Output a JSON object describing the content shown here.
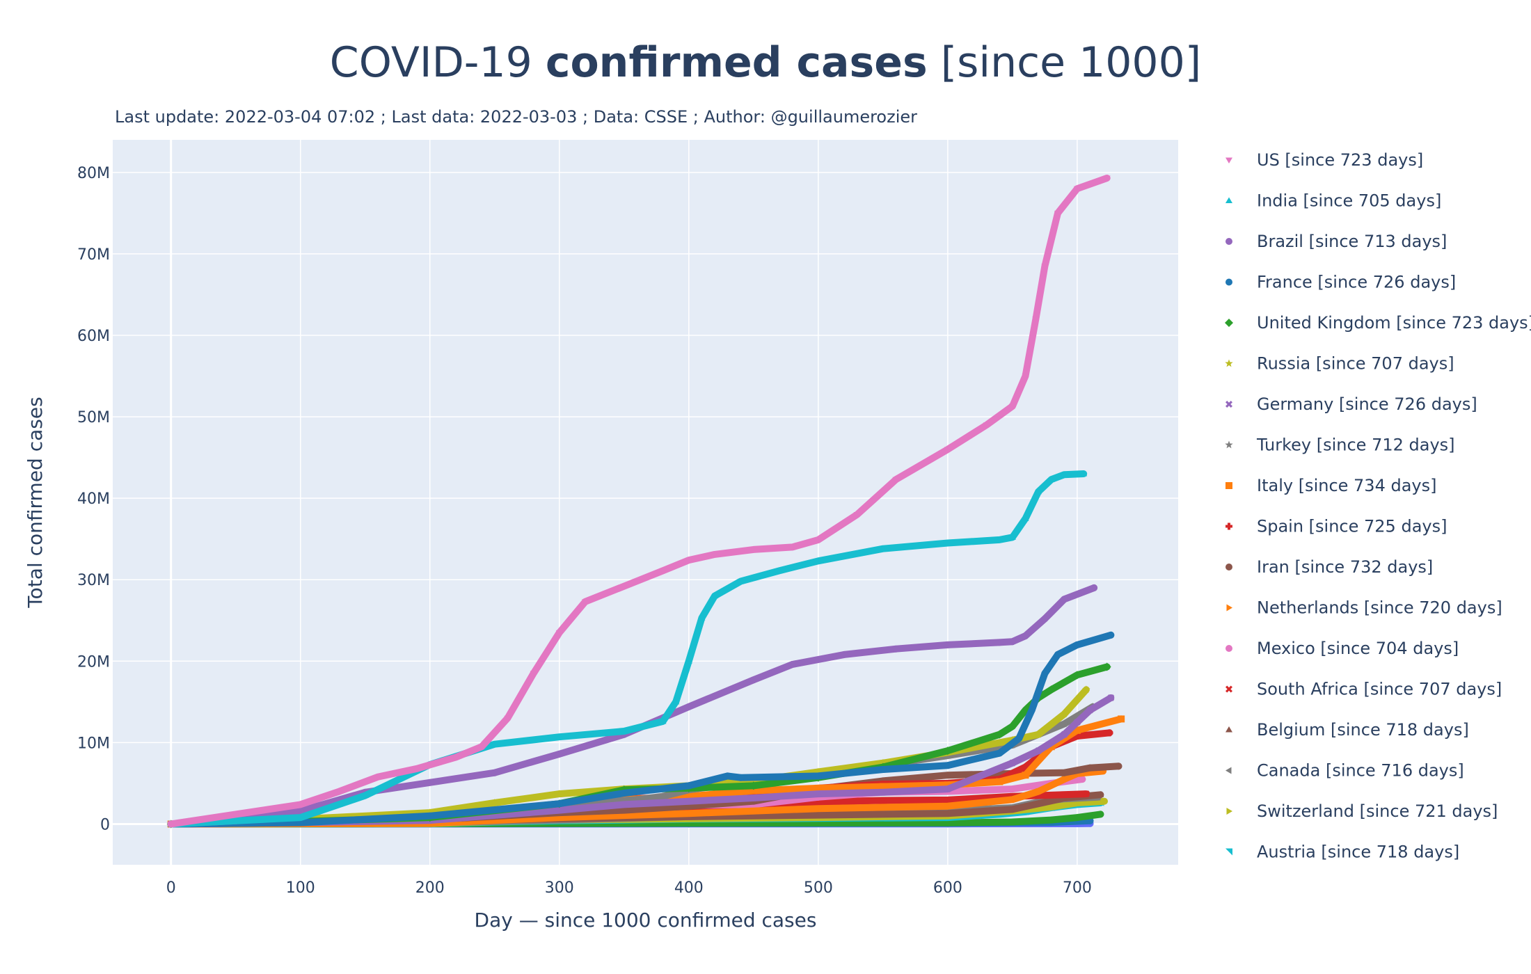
{
  "title_parts": {
    "pre": "COVID-19 ",
    "bold": "confirmed cases",
    "post": " [since 1000]"
  },
  "subtitle": "Last update: 2022-03-04 07:02 ; Last data: 2022-03-03 ; Data: CSSE ; Author: @guillaumerozier",
  "chart_data": {
    "type": "scatter",
    "title": "COVID-19 confirmed cases [since 1000]",
    "subtitle": "Last update: 2022-03-04 07:02 ; Last data: 2022-03-03 ; Data: CSSE ; Author: @guillaumerozier",
    "xlabel": "Day — since 1000 confirmed cases",
    "ylabel": "Total confirmed cases",
    "xlim": [
      -45,
      778
    ],
    "ylim": [
      -5000000,
      84000000
    ],
    "xticks": [
      0,
      100,
      200,
      300,
      400,
      500,
      600,
      700
    ],
    "xtick_labels": [
      "0",
      "100",
      "200",
      "300",
      "400",
      "500",
      "600",
      "700"
    ],
    "yticks": [
      0,
      10000000,
      20000000,
      30000000,
      40000000,
      50000000,
      60000000,
      70000000,
      80000000
    ],
    "ytick_labels": [
      "0",
      "10M",
      "20M",
      "30M",
      "40M",
      "50M",
      "60M",
      "70M",
      "80M"
    ],
    "grid": true,
    "legend_position": "right",
    "plot_background": "#e5ecf6",
    "series": [
      {
        "name": "US",
        "legend": "US  [since 723 days]",
        "color": "#e377c2",
        "marker": "triangle-down",
        "x": [
          0,
          50,
          100,
          130,
          160,
          190,
          220,
          240,
          260,
          280,
          300,
          320,
          350,
          380,
          400,
          420,
          450,
          480,
          500,
          530,
          560,
          600,
          630,
          650,
          660,
          668,
          675,
          685,
          700,
          723
        ],
        "y": [
          0,
          1200000,
          2400000,
          4000000,
          5800000,
          6800000,
          8200000,
          9500000,
          13000000,
          18500000,
          23500000,
          27300000,
          29200000,
          31100000,
          32400000,
          33100000,
          33700000,
          34000000,
          34900000,
          38000000,
          42300000,
          46000000,
          49000000,
          51300000,
          55000000,
          62000000,
          68500000,
          75000000,
          78000000,
          79300000
        ]
      },
      {
        "name": "India",
        "legend": "India  [since 705 days]",
        "color": "#17becf",
        "marker": "triangle-up",
        "x": [
          0,
          100,
          150,
          200,
          250,
          300,
          350,
          380,
          390,
          400,
          410,
          420,
          440,
          470,
          500,
          550,
          600,
          640,
          650,
          660,
          670,
          680,
          690,
          705
        ],
        "y": [
          0,
          800000,
          3500000,
          7300000,
          9800000,
          10700000,
          11400000,
          12600000,
          15000000,
          20000000,
          25300000,
          28000000,
          29800000,
          31100000,
          32300000,
          33800000,
          34500000,
          34900000,
          35200000,
          37500000,
          40800000,
          42300000,
          42900000,
          43000000
        ]
      },
      {
        "name": "Brazil",
        "legend": "Brazil  [since 713 days]",
        "color": "#9467bd",
        "marker": "circle",
        "x": [
          0,
          50,
          100,
          150,
          200,
          250,
          300,
          350,
          400,
          450,
          480,
          520,
          560,
          600,
          640,
          650,
          660,
          675,
          690,
          713
        ],
        "y": [
          0,
          400000,
          1600000,
          3900000,
          5100000,
          6300000,
          8600000,
          11000000,
          14400000,
          17700000,
          19600000,
          20800000,
          21500000,
          22000000,
          22300000,
          22400000,
          23100000,
          25200000,
          27600000,
          29000000
        ]
      },
      {
        "name": "France",
        "legend": "France  [since 726 days]",
        "color": "#1f77b4",
        "marker": "circle",
        "x": [
          0,
          100,
          200,
          300,
          350,
          400,
          430,
          440,
          500,
          550,
          600,
          640,
          655,
          665,
          675,
          685,
          700,
          726
        ],
        "y": [
          0,
          170000,
          1000000,
          2500000,
          3800000,
          4700000,
          5900000,
          5700000,
          5900000,
          6700000,
          7200000,
          8700000,
          10500000,
          14000000,
          18500000,
          20800000,
          22000000,
          23200000
        ]
      },
      {
        "name": "United Kingdom",
        "legend": "United Kingdom  [since 723 days]",
        "color": "#2ca02c",
        "marker": "diamond",
        "x": [
          0,
          100,
          200,
          300,
          350,
          400,
          450,
          500,
          550,
          600,
          640,
          650,
          660,
          670,
          680,
          700,
          723
        ],
        "y": [
          0,
          300000,
          800000,
          2500000,
          4200000,
          4400000,
          4700000,
          5700000,
          7000000,
          9000000,
          11000000,
          12000000,
          14000000,
          15500000,
          16500000,
          18300000,
          19300000
        ]
      },
      {
        "name": "Russia",
        "legend": "Russia  [since 707 days]",
        "color": "#bcbd22",
        "marker": "star",
        "x": [
          0,
          100,
          200,
          250,
          300,
          350,
          400,
          450,
          500,
          550,
          600,
          650,
          670,
          690,
          707
        ],
        "y": [
          0,
          600000,
          1400000,
          2600000,
          3700000,
          4300000,
          4700000,
          5300000,
          6400000,
          7500000,
          8800000,
          10300000,
          11000000,
          13500000,
          16500000
        ]
      },
      {
        "name": "Germany",
        "legend": "Germany  [since 726 days]",
        "color": "#9467bd",
        "marker": "x",
        "x": [
          0,
          100,
          200,
          300,
          350,
          400,
          450,
          500,
          550,
          600,
          650,
          670,
          690,
          700,
          710,
          726
        ],
        "y": [
          0,
          190000,
          450000,
          1700000,
          2400000,
          2800000,
          3200000,
          3700000,
          3900000,
          4300000,
          7500000,
          9000000,
          11000000,
          12500000,
          14000000,
          15500000
        ]
      },
      {
        "name": "Turkey",
        "legend": "Turkey  [since 712 days]",
        "color": "#7f7f7f",
        "marker": "star",
        "x": [
          0,
          100,
          200,
          300,
          360,
          380,
          400,
          450,
          500,
          550,
          600,
          650,
          670,
          690,
          712
        ],
        "y": [
          0,
          180000,
          500000,
          2400000,
          3000000,
          3400000,
          4200000,
          5300000,
          6000000,
          7200000,
          8400000,
          9700000,
          11000000,
          12300000,
          14400000
        ]
      },
      {
        "name": "Italy",
        "legend": "Italy  [since 734 days]",
        "color": "#ff7f0e",
        "marker": "square",
        "x": [
          0,
          100,
          200,
          300,
          350,
          400,
          450,
          500,
          550,
          600,
          640,
          660,
          680,
          700,
          734
        ],
        "y": [
          0,
          240000,
          350000,
          2000000,
          3000000,
          3400000,
          4100000,
          4400000,
          4600000,
          4800000,
          5200000,
          6000000,
          9500000,
          11500000,
          12900000
        ]
      },
      {
        "name": "Spain",
        "legend": "Spain  [since 725 days]",
        "color": "#d62728",
        "marker": "cross",
        "x": [
          0,
          100,
          200,
          300,
          350,
          400,
          450,
          500,
          550,
          600,
          640,
          660,
          680,
          700,
          725
        ],
        "y": [
          0,
          240000,
          900000,
          1900000,
          3100000,
          3300000,
          3600000,
          4400000,
          4900000,
          5000000,
          5500000,
          7000000,
          9500000,
          10800000,
          11200000
        ]
      },
      {
        "name": "Iran",
        "legend": "Iran  [since 732 days]",
        "color": "#8c564b",
        "marker": "circle",
        "x": [
          0,
          100,
          200,
          300,
          350,
          400,
          450,
          500,
          550,
          600,
          650,
          690,
          710,
          732
        ],
        "y": [
          0,
          200000,
          500000,
          1400000,
          1700000,
          2200000,
          2800000,
          4300000,
          5300000,
          6000000,
          6200000,
          6300000,
          6900000,
          7100000
        ]
      },
      {
        "name": "Netherlands",
        "legend": "Netherlands  [since 720 days]",
        "color": "#ff7f0e",
        "marker": "triangle-right",
        "x": [
          0,
          100,
          200,
          300,
          400,
          500,
          600,
          650,
          670,
          690,
          700,
          720
        ],
        "y": [
          0,
          50000,
          100000,
          800000,
          1300000,
          1900000,
          2200000,
          3000000,
          4000000,
          5500000,
          6200000,
          6500000
        ]
      },
      {
        "name": "Mexico",
        "legend": "Mexico  [since 704 days]",
        "color": "#e377c2",
        "marker": "circle",
        "x": [
          0,
          100,
          200,
          300,
          400,
          450,
          500,
          550,
          600,
          650,
          680,
          704
        ],
        "y": [
          0,
          100000,
          600000,
          1600000,
          2300000,
          2400000,
          3300000,
          3900000,
          4000000,
          4300000,
          5000000,
          5500000
        ]
      },
      {
        "name": "South Africa",
        "legend": "South Africa  [since 707 days]",
        "color": "#d62728",
        "marker": "x",
        "x": [
          0,
          100,
          150,
          200,
          250,
          300,
          400,
          450,
          500,
          550,
          600,
          650,
          707
        ],
        "y": [
          0,
          100000,
          500000,
          700000,
          800000,
          1500000,
          1600000,
          1700000,
          2700000,
          2900000,
          2950000,
          3400000,
          3700000
        ]
      },
      {
        "name": "Belgium",
        "legend": "Belgium  [since 718 days]",
        "color": "#8c564b",
        "marker": "triangle-up",
        "x": [
          0,
          100,
          200,
          250,
          300,
          400,
          500,
          600,
          650,
          670,
          690,
          718
        ],
        "y": [
          0,
          60000,
          100000,
          500000,
          650000,
          900000,
          1100000,
          1300000,
          1800000,
          2500000,
          3200000,
          3600000
        ]
      },
      {
        "name": "Canada",
        "legend": "Canada  [since 716 days]",
        "color": "#7f7f7f",
        "marker": "triangle-left",
        "x": [
          0,
          100,
          200,
          300,
          400,
          500,
          600,
          650,
          670,
          690,
          716
        ],
        "y": [
          0,
          100000,
          150000,
          500000,
          900000,
          1300000,
          1600000,
          2000000,
          2700000,
          3100000,
          3300000
        ]
      },
      {
        "name": "Switzerland",
        "legend": "Switzerland  [since 721 days]",
        "color": "#bcbd22",
        "marker": "triangle-right",
        "x": [
          0,
          100,
          200,
          250,
          300,
          400,
          500,
          600,
          650,
          680,
          700,
          721
        ],
        "y": [
          0,
          30000,
          50000,
          300000,
          500000,
          650000,
          800000,
          1000000,
          1600000,
          2100000,
          2600000,
          2800000
        ]
      },
      {
        "name": "Austria",
        "legend": "Austria  [since 718 days]",
        "color": "#17becf",
        "marker": "triangle-ne",
        "x": [
          0,
          100,
          200,
          250,
          300,
          400,
          500,
          600,
          640,
          660,
          680,
          700,
          718
        ],
        "y": [
          0,
          20000,
          50000,
          250000,
          400000,
          600000,
          700000,
          800000,
          1200000,
          1500000,
          2000000,
          2400000,
          2600000
        ]
      },
      {
        "name": "",
        "legend": "",
        "color": "#2ca02c",
        "marker": "circle",
        "x": [
          0,
          200,
          400,
          600,
          650,
          680,
          700,
          718
        ],
        "y": [
          0,
          50000,
          100000,
          150000,
          250000,
          500000,
          800000,
          1200000
        ]
      },
      {
        "name": "",
        "legend": "",
        "color": "#1f77b4",
        "marker": "circle",
        "x": [
          0,
          200,
          400,
          600,
          680,
          710
        ],
        "y": [
          0,
          30000,
          60000,
          100000,
          200000,
          400000
        ]
      },
      {
        "name": "",
        "legend": "",
        "color": "#636efa",
        "marker": "circle",
        "x": [
          0,
          200,
          400,
          600,
          700,
          710
        ],
        "y": [
          0,
          5000,
          10000,
          20000,
          40000,
          60000
        ]
      }
    ]
  }
}
